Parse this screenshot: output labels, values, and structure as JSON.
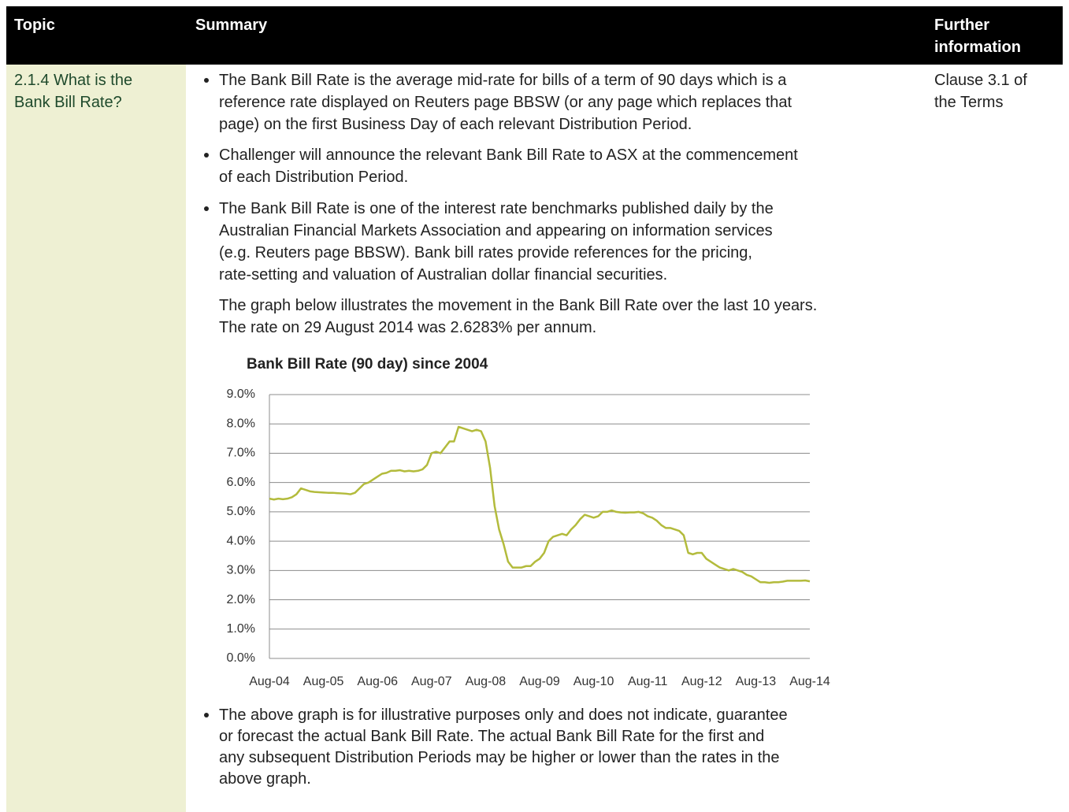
{
  "header": {
    "topic": "Topic",
    "summary": "Summary",
    "further": [
      "Further",
      "information"
    ]
  },
  "row": {
    "topic": [
      "2.1.4 What is the",
      "Bank Bill Rate?"
    ],
    "bullets": [
      [
        "The Bank Bill Rate is the average mid-rate for bills of a term of 90 days which is a",
        "reference rate displayed on Reuters page BBSW (or any page which replaces that",
        "page) on the first Business Day of each relevant Distribution Period."
      ],
      [
        "Challenger will announce the relevant Bank Bill Rate to ASX at the commencement",
        "of each Distribution Period."
      ],
      [
        "The Bank Bill Rate is one of the interest rate benchmarks published daily by the",
        "Australian Financial Markets Association and appearing on information services",
        "(e.g. Reuters page BBSW). Bank bill rates provide references for the pricing,",
        "rate-setting and valuation of Australian dollar financial securities."
      ]
    ],
    "paragraph": [
      "The graph below illustrates the movement in the Bank Bill Rate over the last 10 years.",
      "The rate on 29 August 2014 was 2.6283% per annum."
    ],
    "chart": {
      "type": "line",
      "title": "Bank Bill Rate (90 day) since 2004",
      "color": "#b3bb3c",
      "grid": true,
      "categories": [
        "Aug-04",
        null,
        null,
        null,
        null,
        null,
        null,
        null,
        null,
        null,
        null,
        null,
        "Aug-05",
        null,
        null,
        null,
        null,
        null,
        null,
        null,
        null,
        null,
        null,
        null,
        "Aug-06",
        null,
        null,
        null,
        null,
        null,
        null,
        null,
        null,
        null,
        null,
        null,
        "Aug-07",
        null,
        null,
        null,
        null,
        null,
        null,
        null,
        null,
        null,
        null,
        null,
        "Aug-08",
        null,
        null,
        null,
        null,
        null,
        null,
        null,
        null,
        null,
        null,
        null,
        "Aug-09",
        null,
        null,
        null,
        null,
        null,
        null,
        null,
        null,
        null,
        null,
        null,
        "Aug-10",
        null,
        null,
        null,
        null,
        null,
        null,
        null,
        null,
        null,
        null,
        null,
        "Aug-11",
        null,
        null,
        null,
        null,
        null,
        null,
        null,
        null,
        null,
        null,
        null,
        "Aug-12",
        null,
        null,
        null,
        null,
        null,
        null,
        null,
        null,
        null,
        null,
        null,
        "Aug-13",
        null,
        null,
        null,
        null,
        null,
        null,
        null,
        null,
        null,
        null,
        null,
        "Aug-14"
      ],
      "values": [
        5.45,
        5.42,
        5.45,
        5.43,
        5.45,
        5.5,
        5.6,
        5.8,
        5.75,
        5.7,
        5.68,
        5.67,
        5.66,
        5.65,
        5.65,
        5.64,
        5.63,
        5.62,
        5.6,
        5.65,
        5.8,
        5.95,
        6.0,
        6.1,
        6.2,
        6.3,
        6.33,
        6.4,
        6.4,
        6.42,
        6.38,
        6.4,
        6.38,
        6.4,
        6.45,
        6.6,
        7.0,
        7.05,
        7.0,
        7.2,
        7.4,
        7.4,
        7.9,
        7.85,
        7.8,
        7.75,
        7.8,
        7.75,
        7.4,
        6.5,
        5.2,
        4.4,
        3.9,
        3.3,
        3.1,
        3.1,
        3.1,
        3.15,
        3.15,
        3.3,
        3.4,
        3.6,
        4.0,
        4.15,
        4.2,
        4.25,
        4.2,
        4.4,
        4.55,
        4.75,
        4.9,
        4.85,
        4.8,
        4.85,
        5.0,
        5.0,
        5.05,
        5.0,
        4.98,
        4.97,
        4.98,
        4.98,
        5.0,
        4.95,
        4.85,
        4.8,
        4.7,
        4.55,
        4.45,
        4.45,
        4.4,
        4.35,
        4.2,
        3.6,
        3.55,
        3.6,
        3.6,
        3.4,
        3.3,
        3.2,
        3.1,
        3.05,
        3.0,
        3.05,
        3.0,
        2.95,
        2.85,
        2.8,
        2.7,
        2.6,
        2.6,
        2.58,
        2.6,
        2.6,
        2.62,
        2.65,
        2.65,
        2.65,
        2.65,
        2.66,
        2.63
      ],
      "ylim": [
        0,
        9
      ],
      "yticks": [
        {
          "value": 0,
          "label": "0.0%"
        },
        {
          "value": 1,
          "label": "1.0%"
        },
        {
          "value": 2,
          "label": "2.0%"
        },
        {
          "value": 3,
          "label": "3.0%"
        },
        {
          "value": 4,
          "label": "4.0%"
        },
        {
          "value": 5,
          "label": "5.0%"
        },
        {
          "value": 6,
          "label": "6.0%"
        },
        {
          "value": 7,
          "label": "7.0%"
        },
        {
          "value": 8,
          "label": "8.0%"
        },
        {
          "value": 9,
          "label": "9.0%"
        }
      ]
    },
    "bullets_after": [
      [
        "The above graph is for illustrative purposes only and does not indicate, guarantee",
        "or forecast the actual Bank Bill Rate. The actual Bank Bill Rate for the first and",
        "any subsequent Distribution Periods may be higher or lower than the rates in the",
        "above graph."
      ]
    ],
    "further": [
      "Clause 3.1 of",
      "the Terms"
    ]
  }
}
